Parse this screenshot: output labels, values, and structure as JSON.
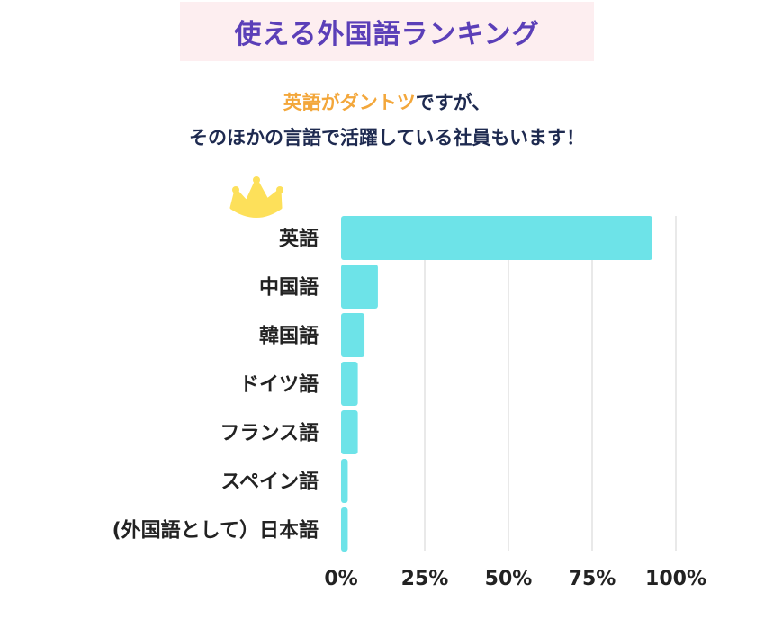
{
  "header": {
    "title": "使える外国語ランキング"
  },
  "subtitle": {
    "line1_highlight": "英語がダントツ",
    "line1_rest": "ですが、",
    "line2": "そのほかの言語で活躍している社員もいます！"
  },
  "colors": {
    "title_bg": "#fdeef0",
    "title_text": "#5b3fb8",
    "highlight": "#f3a73b",
    "bar": "#6de3e8",
    "crown": "#fde05a",
    "grid": "#e2e2e2"
  },
  "icons": {
    "crown": "crown-icon"
  },
  "chart_data": {
    "type": "bar",
    "orientation": "horizontal",
    "categories": [
      "英語",
      "中国語",
      "韓国語",
      "ドイツ語",
      "フランス語",
      "スペイン語",
      "(外国語として）日本語"
    ],
    "values": [
      93,
      11,
      7,
      5,
      5,
      2,
      2
    ],
    "xlim": [
      0,
      100
    ],
    "xticks": [
      "0%",
      "25%",
      "50%",
      "75%",
      "100%"
    ],
    "grid": "vertical",
    "legend": "none"
  }
}
